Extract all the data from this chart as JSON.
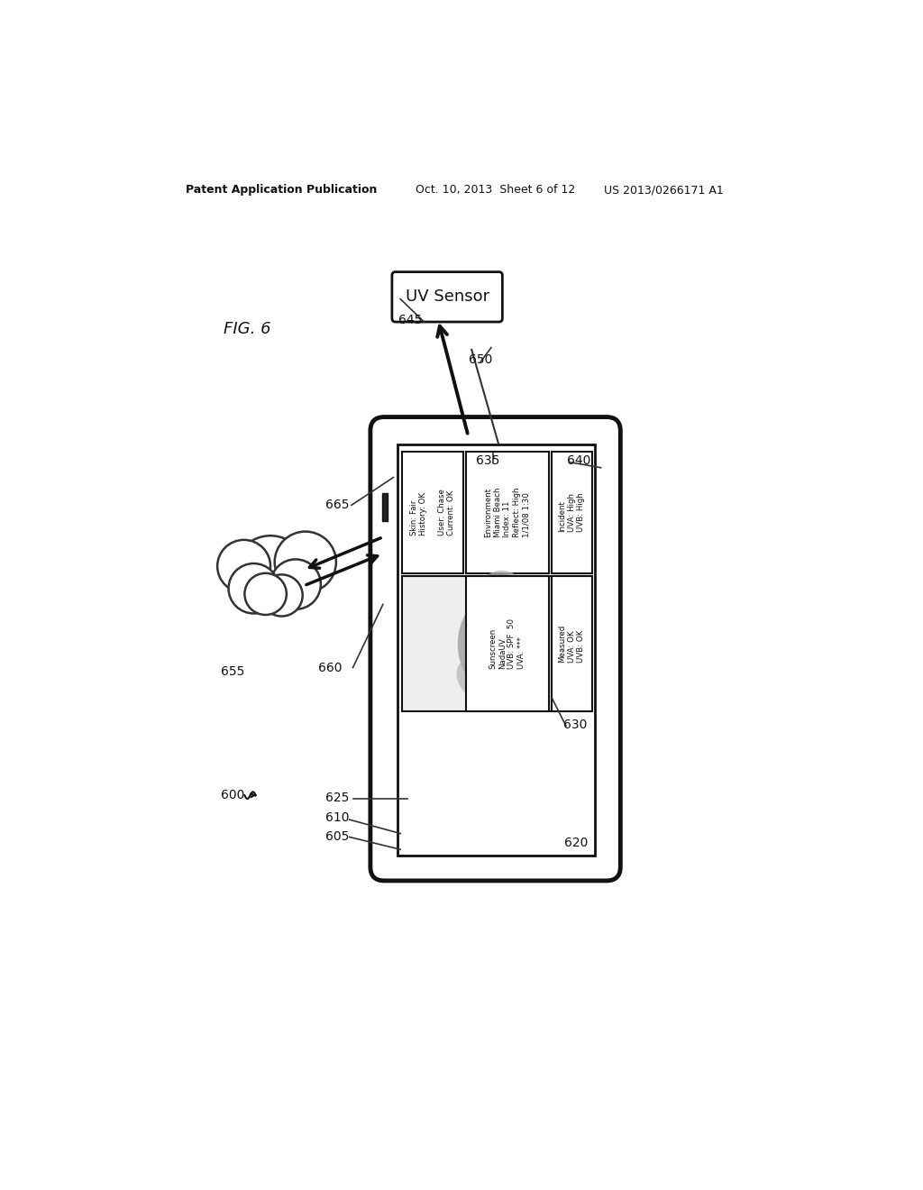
{
  "bg_color": "#ffffff",
  "header_left": "Patent Application Publication",
  "header_mid": "Oct. 10, 2013  Sheet 6 of 12",
  "header_right": "US 2013/0266171 A1",
  "fig_label": "FIG. 6",
  "uv_sensor_label": "UV Sensor",
  "cell_tl_line1": "Skin: Fair",
  "cell_tl_line2": "History: OK",
  "cell_tl_line3": "",
  "cell_tl_line4": "User: Chase",
  "cell_tl_line5": "Current: OK",
  "cell_tm_line1": "Environment",
  "cell_tm_line2": "Miami Beach",
  "cell_tm_line3": "Index: 11",
  "cell_tm_line4": "Reflect: High",
  "cell_tm_line5": "1/1/08 1:30",
  "cell_tr_line1": "Incident",
  "cell_tr_line2": "UVA: High",
  "cell_tr_line3": "UVB: High",
  "cell_bm_line1": "Sunscreen",
  "cell_bm_line2": "NadaUV",
  "cell_bm_line3": "UVB: SPF  50",
  "cell_bm_line4": "UVA: ***",
  "cell_br_line1": "Measured",
  "cell_br_line2": "UVA: OK",
  "cell_br_line3": "UVB: OK",
  "labels": [
    [
      168,
      940,
      "600"
    ],
    [
      318,
      1000,
      "605"
    ],
    [
      318,
      972,
      "610"
    ],
    [
      660,
      1008,
      "620"
    ],
    [
      318,
      944,
      "625"
    ],
    [
      658,
      838,
      "630"
    ],
    [
      533,
      458,
      "635"
    ],
    [
      663,
      458,
      "640"
    ],
    [
      422,
      255,
      "645"
    ],
    [
      523,
      312,
      "650"
    ],
    [
      168,
      762,
      "655"
    ],
    [
      308,
      756,
      "660"
    ],
    [
      318,
      522,
      "665"
    ]
  ]
}
